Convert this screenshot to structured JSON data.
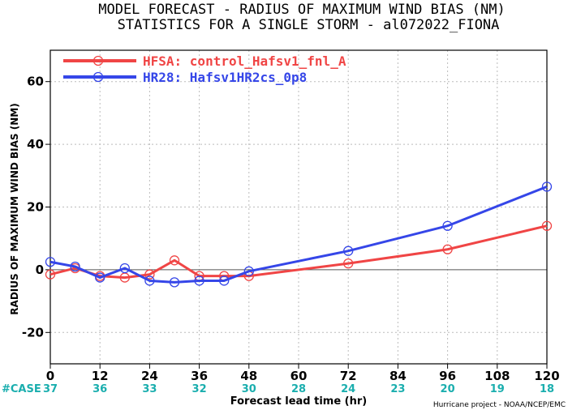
{
  "chart_data": {
    "type": "line",
    "title": "MODEL FORECAST - RADIUS OF MAXIMUM WIND BIAS (NM)",
    "subtitle": "STATISTICS FOR A SINGLE STORM - al072022_FIONA",
    "xlabel": "Forecast lead time (hr)",
    "ylabel": "RADIUS OF MAXIMUM WIND BIAS (NM)",
    "xlim": [
      0,
      120
    ],
    "ylim": [
      -30,
      70
    ],
    "xticks": [
      0,
      12,
      24,
      36,
      48,
      60,
      72,
      84,
      96,
      108,
      120
    ],
    "yticks": [
      -20,
      0,
      20,
      40,
      60
    ],
    "grid": true,
    "zero_line": true,
    "legend_position": "top-left",
    "series": [
      {
        "name": "HFSA: control_Hafsv1_fnl_A",
        "color": "#f04545",
        "x": [
          0,
          6,
          12,
          18,
          24,
          30,
          36,
          42,
          48,
          72,
          96,
          120
        ],
        "values": [
          -1.5,
          0.5,
          -2,
          -2.5,
          -1.5,
          3,
          -2,
          -2,
          -2,
          2,
          6.5,
          14
        ]
      },
      {
        "name": "HR28: Hafsv1HR2cs_0p8",
        "color": "#3546e8",
        "x": [
          0,
          6,
          12,
          18,
          24,
          30,
          36,
          42,
          48,
          72,
          96,
          120
        ],
        "values": [
          2.5,
          1,
          -2.5,
          0.5,
          -3.5,
          -4,
          -3.5,
          -3.5,
          -0.5,
          6,
          14,
          26.5
        ]
      }
    ],
    "case_label": "#CASE",
    "case_x": [
      0,
      12,
      24,
      36,
      48,
      60,
      72,
      84,
      96,
      108,
      120
    ],
    "case_counts": [
      37,
      36,
      33,
      32,
      30,
      28,
      24,
      23,
      20,
      19,
      18
    ],
    "credit": "Hurricane project - NOAA/NCEP/EMC"
  }
}
